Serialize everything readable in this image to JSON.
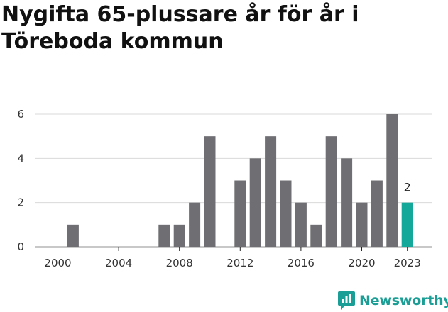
{
  "title": "Nygifta 65-plussare år för år i Töreboda kommun",
  "brand": {
    "name": "Newsworthy",
    "icon": "newsworthy-logo-icon",
    "color": "#1a9e95"
  },
  "colors": {
    "bar": "#6f6e73",
    "highlight": "#14a89a",
    "grid": "#d9d9d9",
    "axis": "#222222"
  },
  "chart_data": {
    "type": "bar",
    "title": "Nygifta 65-plussare år för år i Töreboda kommun",
    "xlabel": "",
    "ylabel": "",
    "categories": [
      2000,
      2001,
      2002,
      2003,
      2004,
      2005,
      2006,
      2007,
      2008,
      2009,
      2010,
      2011,
      2012,
      2013,
      2014,
      2015,
      2016,
      2017,
      2018,
      2019,
      2020,
      2021,
      2022,
      2023
    ],
    "values": [
      0,
      1,
      0,
      0,
      0,
      0,
      0,
      1,
      1,
      2,
      5,
      0,
      3,
      4,
      5,
      3,
      2,
      1,
      5,
      4,
      2,
      3,
      6,
      2
    ],
    "highlight_category": 2023,
    "highlight_label": "2",
    "x_ticks": [
      "2000",
      "2004",
      "2008",
      "2012",
      "2016",
      "2020",
      "2023"
    ],
    "y_ticks": [
      "0",
      "2",
      "4",
      "6"
    ],
    "ylim": [
      0,
      6
    ],
    "grid": true,
    "legend": "none"
  }
}
